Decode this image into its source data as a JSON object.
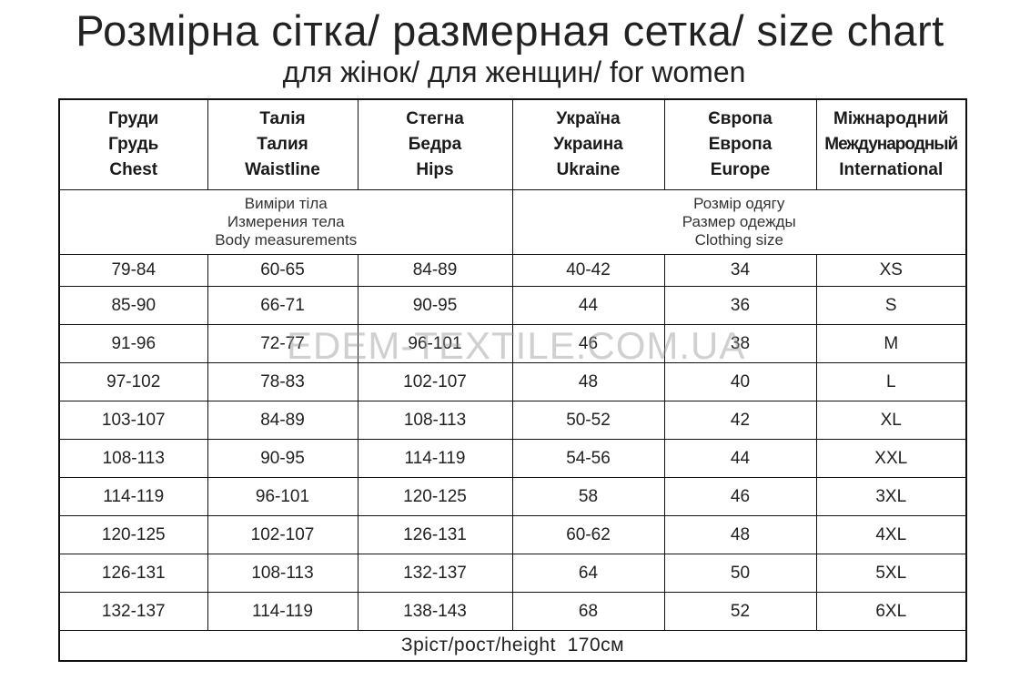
{
  "title": "Розмірна сітка/ размерная сетка/ size chart",
  "subtitle": "для жінок/ для женщин/ for women",
  "watermark": "EDEM-TEXTILE.COM.UA",
  "headers": [
    [
      "Груди",
      "Грудь",
      "Chest"
    ],
    [
      "Талія",
      "Талия",
      "Waistline"
    ],
    [
      "Стегна",
      "Бедра",
      "Hips"
    ],
    [
      "Україна",
      "Украина",
      "Ukraine"
    ],
    [
      "Європа",
      "Европа",
      "Europe"
    ],
    [
      "Міжнародний",
      "Международный",
      "International"
    ]
  ],
  "groups": {
    "body": [
      "Виміри тіла",
      "Измерения тела",
      "Body measurements"
    ],
    "clothing": [
      "Розмір одягу",
      "Размер одежды",
      "Clothing size"
    ]
  },
  "rows": [
    [
      "79-84",
      "60-65",
      "84-89",
      "40-42",
      "34",
      "XS"
    ],
    [
      "85-90",
      "66-71",
      "90-95",
      "44",
      "36",
      "S"
    ],
    [
      "91-96",
      "72-77",
      "96-101",
      "46",
      "38",
      "M"
    ],
    [
      "97-102",
      "78-83",
      "102-107",
      "48",
      "40",
      "L"
    ],
    [
      "103-107",
      "84-89",
      "108-113",
      "50-52",
      "42",
      "XL"
    ],
    [
      "108-113",
      "90-95",
      "114-119",
      "54-56",
      "44",
      "XXL"
    ],
    [
      "114-119",
      "96-101",
      "120-125",
      "58",
      "46",
      "3XL"
    ],
    [
      "120-125",
      "102-107",
      "126-131",
      "60-62",
      "48",
      "4XL"
    ],
    [
      "126-131",
      "108-113",
      "132-137",
      "64",
      "50",
      "5XL"
    ],
    [
      "132-137",
      "114-119",
      "138-143",
      "68",
      "52",
      "6XL"
    ]
  ],
  "footer": "Зріст/рост/height  170см"
}
